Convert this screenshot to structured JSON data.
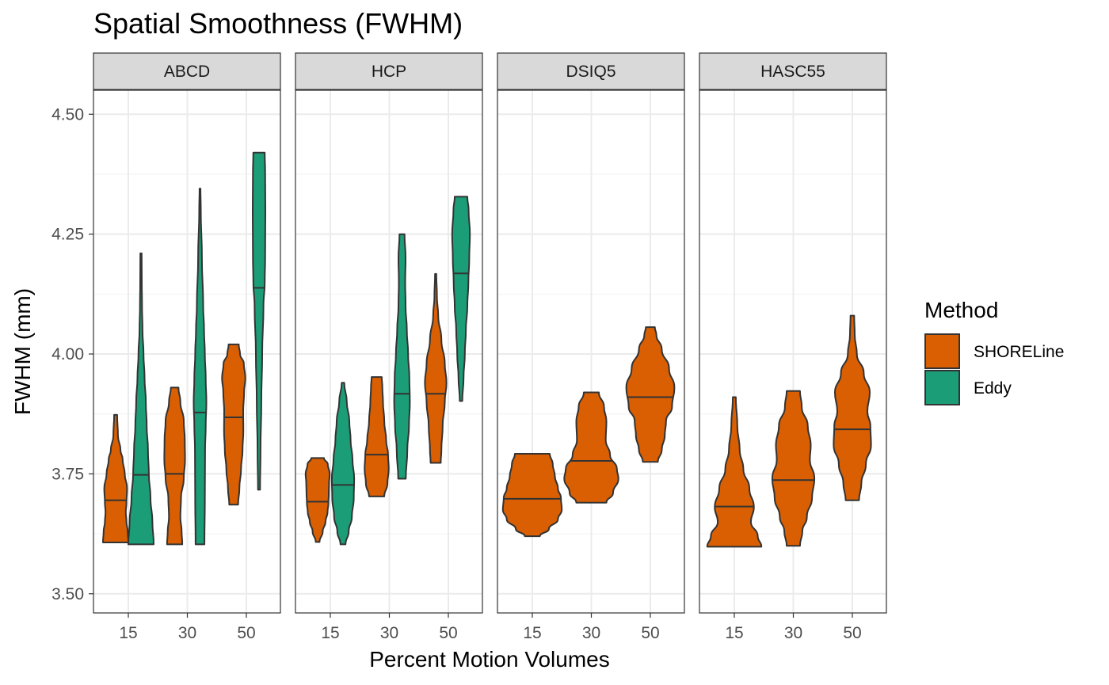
{
  "chart_data": {
    "type": "violin",
    "title": "Spatial Smoothness (FWHM)",
    "xlabel": "Percent Motion Volumes",
    "ylabel": "FWHM (mm)",
    "ylim": [
      3.46,
      4.55
    ],
    "yticks": [
      3.5,
      3.75,
      4.0,
      4.25,
      4.5
    ],
    "ytick_labels": [
      "3.50",
      "3.75",
      "4.00",
      "4.25",
      "4.50"
    ],
    "categories": [
      "15",
      "30",
      "50"
    ],
    "grid": true,
    "legend": {
      "title": "Method",
      "position": "right",
      "entries": [
        {
          "name": "SHORELine",
          "color": "#D95F02"
        },
        {
          "name": "Eddy",
          "color": "#1B9E77"
        }
      ]
    },
    "panels": [
      {
        "name": "ABCD",
        "violins": [
          {
            "category": "15",
            "method": "SHORELine",
            "min": 3.607,
            "max": 3.873,
            "median": 3.695,
            "profile": [
              [
                3.607,
                1.0
              ],
              [
                3.63,
                0.95
              ],
              [
                3.65,
                0.85
              ],
              [
                3.67,
                0.8
              ],
              [
                3.69,
                0.85
              ],
              [
                3.72,
                0.9
              ],
              [
                3.75,
                0.72
              ],
              [
                3.78,
                0.55
              ],
              [
                3.8,
                0.38
              ],
              [
                3.83,
                0.18
              ],
              [
                3.873,
                0.12
              ]
            ]
          },
          {
            "category": "15",
            "method": "Eddy",
            "min": 3.603,
            "max": 4.21,
            "median": 3.748,
            "profile": [
              [
                3.603,
                1.0
              ],
              [
                3.65,
                0.9
              ],
              [
                3.7,
                0.75
              ],
              [
                3.75,
                0.62
              ],
              [
                3.8,
                0.55
              ],
              [
                3.85,
                0.45
              ],
              [
                3.9,
                0.38
              ],
              [
                3.95,
                0.28
              ],
              [
                4.0,
                0.2
              ],
              [
                4.05,
                0.12
              ],
              [
                4.1,
                0.08
              ],
              [
                4.15,
                0.06
              ],
              [
                4.21,
                0.05
              ]
            ]
          },
          {
            "category": "30",
            "method": "SHORELine",
            "min": 3.603,
            "max": 3.93,
            "median": 3.75,
            "profile": [
              [
                3.603,
                0.6
              ],
              [
                3.63,
                0.55
              ],
              [
                3.66,
                0.45
              ],
              [
                3.7,
                0.5
              ],
              [
                3.74,
                0.72
              ],
              [
                3.78,
                0.82
              ],
              [
                3.82,
                0.8
              ],
              [
                3.86,
                0.72
              ],
              [
                3.9,
                0.45
              ],
              [
                3.93,
                0.3
              ]
            ]
          },
          {
            "category": "30",
            "method": "Eddy",
            "min": 3.603,
            "max": 4.345,
            "median": 3.878,
            "profile": [
              [
                3.603,
                0.35
              ],
              [
                3.7,
                0.38
              ],
              [
                3.8,
                0.4
              ],
              [
                3.85,
                0.45
              ],
              [
                3.9,
                0.5
              ],
              [
                3.95,
                0.45
              ],
              [
                4.0,
                0.38
              ],
              [
                4.05,
                0.32
              ],
              [
                4.1,
                0.25
              ],
              [
                4.2,
                0.15
              ],
              [
                4.3,
                0.06
              ],
              [
                4.345,
                0.04
              ]
            ]
          },
          {
            "category": "50",
            "method": "SHORELine",
            "min": 3.686,
            "max": 4.02,
            "median": 3.868,
            "profile": [
              [
                3.686,
                0.35
              ],
              [
                3.72,
                0.45
              ],
              [
                3.76,
                0.58
              ],
              [
                3.8,
                0.7
              ],
              [
                3.84,
                0.76
              ],
              [
                3.88,
                0.75
              ],
              [
                3.92,
                0.82
              ],
              [
                3.95,
                0.92
              ],
              [
                3.98,
                0.8
              ],
              [
                4.0,
                0.5
              ],
              [
                4.02,
                0.4
              ]
            ]
          },
          {
            "category": "50",
            "method": "Eddy",
            "min": 3.717,
            "max": 4.42,
            "median": 4.138,
            "profile": [
              [
                3.717,
                0.08
              ],
              [
                3.8,
                0.12
              ],
              [
                3.9,
                0.18
              ],
              [
                4.0,
                0.25
              ],
              [
                4.1,
                0.35
              ],
              [
                4.15,
                0.45
              ],
              [
                4.2,
                0.48
              ],
              [
                4.3,
                0.5
              ],
              [
                4.38,
                0.48
              ],
              [
                4.42,
                0.45
              ]
            ]
          }
        ]
      },
      {
        "name": "HCP",
        "violins": [
          {
            "category": "15",
            "method": "SHORELine",
            "min": 3.608,
            "max": 3.783,
            "median": 3.692,
            "profile": [
              [
                3.608,
                0.15
              ],
              [
                3.63,
                0.4
              ],
              [
                3.65,
                0.62
              ],
              [
                3.67,
                0.78
              ],
              [
                3.69,
                0.85
              ],
              [
                3.71,
                0.88
              ],
              [
                3.73,
                0.9
              ],
              [
                3.75,
                0.95
              ],
              [
                3.77,
                0.8
              ],
              [
                3.783,
                0.5
              ]
            ]
          },
          {
            "category": "15",
            "method": "Eddy",
            "min": 3.603,
            "max": 3.94,
            "median": 3.727,
            "profile": [
              [
                3.603,
                0.2
              ],
              [
                3.63,
                0.45
              ],
              [
                3.66,
                0.7
              ],
              [
                3.7,
                0.85
              ],
              [
                3.74,
                0.88
              ],
              [
                3.78,
                0.75
              ],
              [
                3.82,
                0.6
              ],
              [
                3.86,
                0.5
              ],
              [
                3.9,
                0.3
              ],
              [
                3.94,
                0.1
              ]
            ]
          },
          {
            "category": "30",
            "method": "SHORELine",
            "min": 3.703,
            "max": 3.952,
            "median": 3.79,
            "profile": [
              [
                3.703,
                0.6
              ],
              [
                3.73,
                0.85
              ],
              [
                3.76,
                0.95
              ],
              [
                3.79,
                0.9
              ],
              [
                3.82,
                0.75
              ],
              [
                3.86,
                0.6
              ],
              [
                3.9,
                0.5
              ],
              [
                3.93,
                0.45
              ],
              [
                3.952,
                0.4
              ]
            ]
          },
          {
            "category": "30",
            "method": "Eddy",
            "min": 3.74,
            "max": 4.25,
            "median": 3.917,
            "profile": [
              [
                3.74,
                0.3
              ],
              [
                3.8,
                0.42
              ],
              [
                3.85,
                0.55
              ],
              [
                3.9,
                0.62
              ],
              [
                3.95,
                0.58
              ],
              [
                4.0,
                0.48
              ],
              [
                4.05,
                0.38
              ],
              [
                4.1,
                0.28
              ],
              [
                4.15,
                0.25
              ],
              [
                4.2,
                0.28
              ],
              [
                4.25,
                0.2
              ]
            ]
          },
          {
            "category": "50",
            "method": "SHORELine",
            "min": 3.773,
            "max": 4.167,
            "median": 3.917,
            "profile": [
              [
                3.773,
                0.4
              ],
              [
                3.8,
                0.45
              ],
              [
                3.85,
                0.55
              ],
              [
                3.9,
                0.72
              ],
              [
                3.94,
                0.85
              ],
              [
                3.98,
                0.72
              ],
              [
                4.03,
                0.45
              ],
              [
                4.08,
                0.2
              ],
              [
                4.12,
                0.1
              ],
              [
                4.167,
                0.05
              ]
            ]
          },
          {
            "category": "50",
            "method": "Eddy",
            "min": 3.902,
            "max": 4.328,
            "median": 4.168,
            "profile": [
              [
                3.902,
                0.1
              ],
              [
                3.95,
                0.2
              ],
              [
                4.0,
                0.3
              ],
              [
                4.05,
                0.38
              ],
              [
                4.1,
                0.5
              ],
              [
                4.15,
                0.58
              ],
              [
                4.2,
                0.65
              ],
              [
                4.25,
                0.7
              ],
              [
                4.3,
                0.6
              ],
              [
                4.328,
                0.5
              ]
            ]
          }
        ]
      },
      {
        "name": "DSIQ5",
        "violins": [
          {
            "category": "15",
            "method": "SHORELine",
            "min": 3.62,
            "max": 3.792,
            "median": 3.698,
            "profile": [
              [
                3.62,
                0.25
              ],
              [
                3.635,
                0.55
              ],
              [
                3.655,
                0.85
              ],
              [
                3.675,
                0.98
              ],
              [
                3.7,
                0.95
              ],
              [
                3.72,
                0.85
              ],
              [
                3.745,
                0.75
              ],
              [
                3.77,
                0.68
              ],
              [
                3.792,
                0.58
              ]
            ]
          },
          {
            "category": "30",
            "method": "SHORELine",
            "min": 3.69,
            "max": 3.92,
            "median": 3.777,
            "profile": [
              [
                3.69,
                0.5
              ],
              [
                3.71,
                0.72
              ],
              [
                3.74,
                0.9
              ],
              [
                3.76,
                0.85
              ],
              [
                3.79,
                0.62
              ],
              [
                3.82,
                0.48
              ],
              [
                3.86,
                0.5
              ],
              [
                3.89,
                0.42
              ],
              [
                3.92,
                0.25
              ]
            ]
          },
          {
            "category": "50",
            "method": "SHORELine",
            "min": 3.775,
            "max": 4.056,
            "median": 3.91,
            "profile": [
              [
                3.775,
                0.25
              ],
              [
                3.8,
                0.38
              ],
              [
                3.83,
                0.48
              ],
              [
                3.86,
                0.52
              ],
              [
                3.89,
                0.72
              ],
              [
                3.93,
                0.8
              ],
              [
                3.97,
                0.62
              ],
              [
                4.01,
                0.38
              ],
              [
                4.04,
                0.2
              ],
              [
                4.056,
                0.15
              ]
            ]
          }
        ]
      },
      {
        "name": "HASC55",
        "violins": [
          {
            "category": "15",
            "method": "SHORELine",
            "min": 3.598,
            "max": 3.91,
            "median": 3.682,
            "profile": [
              [
                3.598,
                0.9
              ],
              [
                3.62,
                0.78
              ],
              [
                3.65,
                0.55
              ],
              [
                3.68,
                0.65
              ],
              [
                3.72,
                0.5
              ],
              [
                3.76,
                0.3
              ],
              [
                3.8,
                0.18
              ],
              [
                3.85,
                0.1
              ],
              [
                3.91,
                0.05
              ]
            ]
          },
          {
            "category": "30",
            "method": "SHORELine",
            "min": 3.6,
            "max": 3.923,
            "median": 3.737,
            "profile": [
              [
                3.6,
                0.22
              ],
              [
                3.63,
                0.3
              ],
              [
                3.66,
                0.45
              ],
              [
                3.7,
                0.62
              ],
              [
                3.74,
                0.7
              ],
              [
                3.78,
                0.55
              ],
              [
                3.81,
                0.58
              ],
              [
                3.85,
                0.48
              ],
              [
                3.89,
                0.28
              ],
              [
                3.923,
                0.22
              ]
            ]
          },
          {
            "category": "50",
            "method": "SHORELine",
            "min": 3.695,
            "max": 4.08,
            "median": 3.843,
            "profile": [
              [
                3.695,
                0.22
              ],
              [
                3.73,
                0.3
              ],
              [
                3.77,
                0.45
              ],
              [
                3.81,
                0.62
              ],
              [
                3.85,
                0.6
              ],
              [
                3.88,
                0.5
              ],
              [
                3.92,
                0.58
              ],
              [
                3.96,
                0.38
              ],
              [
                4.0,
                0.15
              ],
              [
                4.04,
                0.08
              ],
              [
                4.08,
                0.06
              ]
            ]
          }
        ]
      }
    ]
  }
}
